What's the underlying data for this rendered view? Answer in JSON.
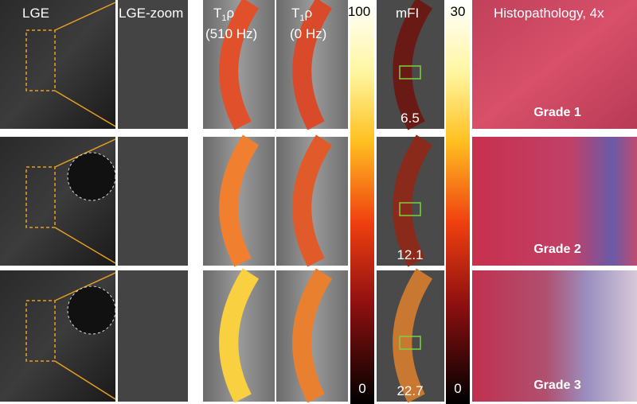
{
  "headers": {
    "lge": "LGE",
    "lge_zoom": "LGE-zoom",
    "t1rho_510": {
      "symbol": "T",
      "subscript": "1",
      "suffix": "ρ",
      "condition": "(510 Hz)"
    },
    "t1rho_0": {
      "symbol": "T",
      "subscript": "1",
      "suffix": "ρ",
      "condition": "(0 Hz)"
    },
    "mfi": "mFI",
    "histopathology": "Histopathology, 4x"
  },
  "colorbars": [
    {
      "max": 100,
      "min": 0
    },
    {
      "max": 30,
      "min": 0
    }
  ],
  "rows": [
    {
      "mfi_value": 6.5,
      "grade": "Grade 1"
    },
    {
      "mfi_value": 12.1,
      "grade": "Grade 2"
    },
    {
      "mfi_value": 22.7,
      "grade": "Grade 3"
    }
  ]
}
